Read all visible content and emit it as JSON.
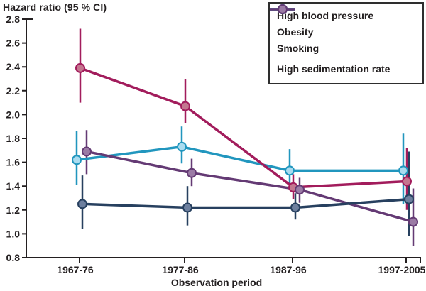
{
  "chart_data": {
    "type": "line",
    "title": "Hazard ratio (95 % CI)",
    "xlabel": "Observation period",
    "ylabel": "Hazard ratio (95 % CI)",
    "categories": [
      "1967-76",
      "1977-86",
      "1987-96",
      "1997-2005"
    ],
    "ylim": [
      0.8,
      2.8
    ],
    "ytick_step": 0.2,
    "ytick_labels": [
      "2.8",
      "2.6",
      "2.4",
      "2.2",
      "2.0",
      "1.8",
      "1.6",
      "1.4",
      "1.2",
      "1.0",
      "0.8"
    ],
    "grid": false,
    "legend_position": "top-right",
    "axis_color": "#231f20",
    "background_color": "#ffffff",
    "error_bars": "95% confidence intervals, vertical lines without caps",
    "series": [
      {
        "name": "High blood pressure",
        "color": "#a21c5c",
        "marker_fill": "#c4768f",
        "values": [
          2.39,
          2.07,
          1.39,
          1.44
        ],
        "ci_low": [
          2.1,
          1.93,
          1.29,
          1.2
        ],
        "ci_high": [
          2.72,
          2.3,
          1.5,
          1.72
        ]
      },
      {
        "name": "Obesity",
        "color": "#27405f",
        "marker_fill": "#6d7f9e",
        "values": [
          1.25,
          1.22,
          1.22,
          1.29
        ],
        "ci_low": [
          1.04,
          1.07,
          1.12,
          0.98
        ],
        "ci_high": [
          1.49,
          1.4,
          1.34,
          1.69
        ]
      },
      {
        "name": "Smoking",
        "color": "#2196be",
        "marker_fill": "#aadcf0",
        "values": [
          1.62,
          1.73,
          1.53,
          1.53
        ],
        "ci_low": [
          1.41,
          1.59,
          1.37,
          1.25
        ],
        "ci_high": [
          1.86,
          1.9,
          1.71,
          1.84
        ]
      },
      {
        "name": "High sedimentation rate",
        "color": "#643a74",
        "marker_fill": "#9b7ba5",
        "values": [
          1.69,
          1.51,
          1.37,
          1.1
        ],
        "ci_low": [
          1.5,
          1.4,
          1.26,
          0.9
        ],
        "ci_high": [
          1.87,
          1.63,
          1.47,
          1.38
        ]
      }
    ]
  }
}
